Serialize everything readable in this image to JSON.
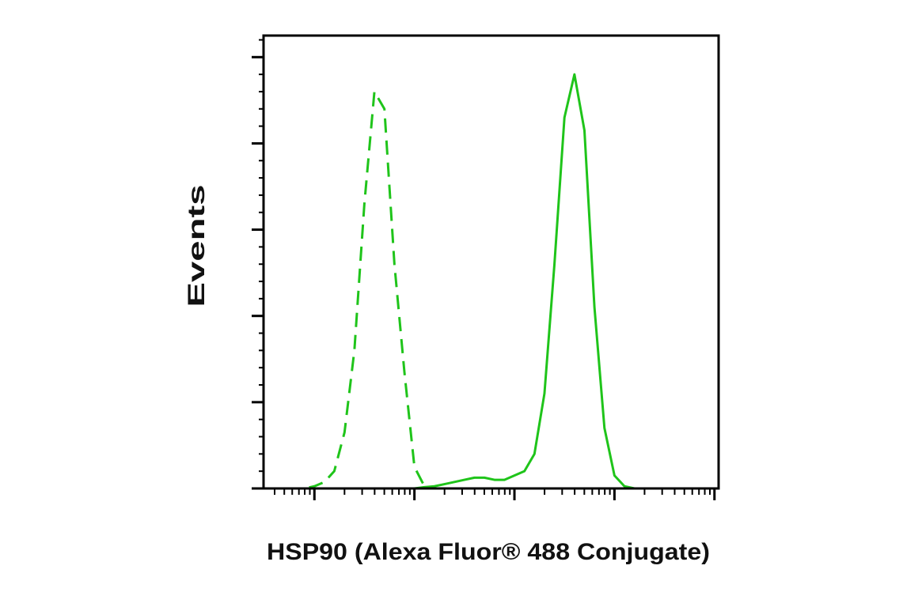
{
  "chart_data": {
    "type": "line",
    "xlabel": "HSP90 (Alexa Fluor® 488 Conjugate)",
    "ylabel": "Events",
    "xscale": "log",
    "xlim": [
      31,
      1100000
    ],
    "xticks": [
      100,
      1000,
      10000,
      100000,
      1000000
    ],
    "xminor_ticks": [
      40,
      50,
      60,
      70,
      80,
      90,
      200,
      300,
      400,
      500,
      600,
      700,
      800,
      900,
      2000,
      3000,
      4000,
      5000,
      6000,
      7000,
      8000,
      9000,
      20000,
      30000,
      40000,
      50000,
      60000,
      70000,
      80000,
      90000,
      200000,
      300000,
      400000,
      500000,
      600000,
      700000,
      800000,
      900000
    ],
    "ylim": [
      0,
      105
    ],
    "yticks": [
      0,
      20,
      40,
      60,
      80,
      100
    ],
    "yminor_ticks": [
      4,
      8,
      12,
      16,
      24,
      28,
      32,
      36,
      44,
      48,
      52,
      56,
      64,
      68,
      72,
      76,
      84,
      88,
      92,
      96,
      104
    ],
    "x": [
      32,
      40,
      50,
      63,
      79,
      100,
      126,
      158,
      200,
      251,
      316,
      398,
      501,
      631,
      794,
      1000,
      1259,
      1585,
      1995,
      2512,
      3162,
      3981,
      5012,
      6310,
      7943,
      10000,
      12589,
      15849,
      19953,
      25119,
      31623,
      39811,
      50119,
      63096,
      79433,
      100000,
      125893,
      158489,
      199526,
      251189,
      316228,
      398107,
      501187,
      630957,
      794328,
      1000000
    ],
    "series": [
      {
        "color": "#1fc41a",
        "dash": true,
        "values": [
          0,
          0,
          0,
          0,
          0,
          0.5,
          1.5,
          4,
          13,
          32,
          66,
          92,
          88,
          52,
          27,
          5,
          0.5,
          0,
          0,
          0,
          0,
          0,
          0,
          0,
          0,
          0,
          0,
          0,
          0,
          0,
          0,
          0,
          0,
          0,
          0,
          0,
          0,
          0,
          0,
          0,
          0,
          0,
          0,
          0,
          0,
          0
        ]
      },
      {
        "color": "#1fc41a",
        "dash": false,
        "values": [
          0,
          0,
          0,
          0,
          0,
          0,
          0,
          0,
          0,
          0,
          0,
          0,
          0,
          0,
          0,
          0,
          0.3,
          0.5,
          1,
          1.5,
          2,
          2.5,
          2.5,
          2,
          2,
          3,
          4,
          8,
          22,
          52,
          86,
          96,
          83,
          42,
          14,
          3,
          0.5,
          0,
          0,
          0,
          0,
          0,
          0,
          0,
          0,
          0
        ]
      }
    ]
  }
}
